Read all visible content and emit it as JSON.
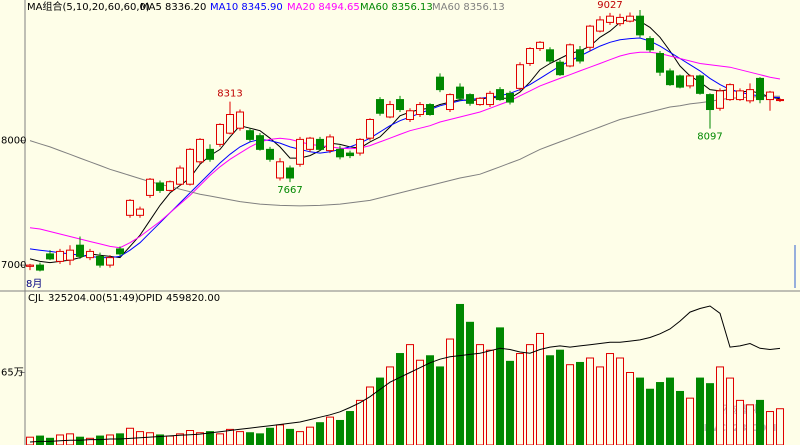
{
  "chart_data": {
    "type": "candlestick",
    "legend": [
      {
        "label": "MA组合(5,10,20,60,60,0)",
        "color": "#000000"
      },
      {
        "label": "MA5 8336.20",
        "color": "#000000"
      },
      {
        "label": "MA10 8345.90",
        "color": "#0000ff"
      },
      {
        "label": "MA20 8494.65",
        "color": "#ff00ff"
      },
      {
        "label": "MA60 8356.13",
        "color": "#008800"
      },
      {
        "label": "MA60 8356.13",
        "color": "#808080"
      }
    ],
    "x_label": "8月",
    "up_color": "#e00000",
    "down_color": "#008800",
    "ylim": [
      6800,
      9130
    ],
    "yticks": [
      7000,
      8000
    ],
    "ohlc": {
      "open": [
        6990,
        7000,
        7090,
        7030,
        7040,
        7160,
        7060,
        7070,
        7000,
        7130,
        7400,
        7400,
        7560,
        7660,
        7600,
        7650,
        7650,
        7830,
        7930,
        7970,
        8060,
        8100,
        8080,
        8040,
        7930,
        7700,
        7780,
        7810,
        7930,
        8010,
        7920,
        7930,
        7900,
        7900,
        8020,
        8330,
        8190,
        8330,
        8170,
        8210,
        8290,
        8510,
        8250,
        8430,
        8370,
        8290,
        8290,
        8410,
        8380,
        8420,
        8620,
        8740,
        8730,
        8630,
        8600,
        8730,
        8750,
        8880,
        8950,
        8940,
        8960,
        9000,
        8820,
        8700,
        8560,
        8520,
        8440,
        8520,
        8370,
        8260,
        8330,
        8330,
        8320,
        8500,
        8330,
        8330
      ],
      "high": [
        7010,
        7020,
        7120,
        7130,
        7160,
        7230,
        7130,
        7100,
        7080,
        7150,
        7530,
        7470,
        7700,
        7680,
        7680,
        7800,
        7940,
        8020,
        7970,
        8140,
        8313,
        8250,
        8100,
        8060,
        7950,
        7860,
        7800,
        8030,
        8030,
        8030,
        8050,
        7960,
        7920,
        8020,
        8180,
        8350,
        8320,
        8360,
        8260,
        8310,
        8300,
        8540,
        8380,
        8460,
        8380,
        8350,
        8400,
        8430,
        8400,
        8630,
        8750,
        8800,
        8750,
        8650,
        8780,
        8760,
        8930,
        9000,
        9027,
        9020,
        9030,
        9050,
        8840,
        8720,
        8580,
        8530,
        8530,
        8530,
        8380,
        8420,
        8460,
        8420,
        8460,
        8510,
        8400,
        8340
      ],
      "low": [
        6960,
        6950,
        7040,
        7010,
        7000,
        7050,
        7040,
        6980,
        6980,
        7070,
        7380,
        7380,
        7540,
        7580,
        7590,
        7640,
        7640,
        7810,
        7830,
        7950,
        8050,
        8080,
        7990,
        7920,
        7830,
        7680,
        7667,
        7790,
        7910,
        7920,
        7900,
        7850,
        7860,
        7880,
        8000,
        8200,
        8180,
        8230,
        8150,
        8190,
        8200,
        8390,
        8230,
        8320,
        8280,
        8280,
        8270,
        8320,
        8290,
        8400,
        8600,
        8720,
        8620,
        8520,
        8590,
        8620,
        8720,
        8870,
        8930,
        8920,
        8950,
        8830,
        8710,
        8520,
        8440,
        8420,
        8420,
        8370,
        8097,
        8240,
        8320,
        8320,
        8300,
        8300,
        8240,
        8310
      ],
      "close": [
        7000,
        6960,
        7050,
        7110,
        7120,
        7070,
        7110,
        7000,
        7060,
        7090,
        7520,
        7450,
        7690,
        7600,
        7670,
        7780,
        7930,
        8010,
        7850,
        8130,
        8210,
        8230,
        8010,
        7930,
        7850,
        7830,
        7700,
        8010,
        8020,
        7930,
        8030,
        7870,
        7880,
        8010,
        8170,
        8220,
        8290,
        8250,
        8240,
        8290,
        8210,
        8410,
        8370,
        8340,
        8300,
        8340,
        8380,
        8330,
        8310,
        8610,
        8740,
        8790,
        8640,
        8530,
        8770,
        8640,
        8920,
        8970,
        9000,
        8990,
        9000,
        8850,
        8730,
        8550,
        8450,
        8430,
        8520,
        8380,
        8250,
        8400,
        8450,
        8400,
        8410,
        8330,
        8390,
        8330
      ]
    },
    "ma_lines": [
      {
        "color": "#000000",
        "values": [
          7050,
          7030,
          7020,
          7030,
          7040,
          7060,
          7090,
          7080,
          7070,
          7060,
          7150,
          7240,
          7360,
          7480,
          7580,
          7640,
          7700,
          7810,
          7880,
          7930,
          8030,
          8120,
          8100,
          8080,
          8020,
          7950,
          7860,
          7860,
          7880,
          7920,
          7980,
          7970,
          7950,
          7940,
          7990,
          8030,
          8110,
          8200,
          8230,
          8250,
          8260,
          8290,
          8310,
          8330,
          8320,
          8330,
          8350,
          8340,
          8340,
          8390,
          8470,
          8570,
          8620,
          8660,
          8700,
          8720,
          8760,
          8830,
          8880,
          8950,
          8980,
          8960,
          8910,
          8830,
          8720,
          8600,
          8520,
          8470,
          8410,
          8400,
          8410,
          8390,
          8400,
          8380,
          8350,
          8336
        ]
      },
      {
        "color": "#0000ff",
        "values": [
          7130,
          7120,
          7110,
          7100,
          7090,
          7080,
          7070,
          7060,
          7060,
          7070,
          7120,
          7180,
          7260,
          7340,
          7420,
          7500,
          7580,
          7660,
          7740,
          7820,
          7890,
          7950,
          7990,
          8010,
          8000,
          7980,
          7950,
          7930,
          7910,
          7900,
          7910,
          7930,
          7950,
          7980,
          8020,
          8070,
          8120,
          8160,
          8190,
          8220,
          8250,
          8280,
          8300,
          8320,
          8330,
          8340,
          8350,
          8360,
          8380,
          8410,
          8450,
          8500,
          8550,
          8600,
          8640,
          8680,
          8720,
          8760,
          8790,
          8810,
          8820,
          8825,
          8800,
          8760,
          8710,
          8660,
          8610,
          8560,
          8500,
          8450,
          8410,
          8390,
          8370,
          8360,
          8350,
          8346
        ]
      },
      {
        "color": "#ff00ff",
        "values": [
          7300,
          7290,
          7270,
          7250,
          7230,
          7210,
          7190,
          7170,
          7150,
          7140,
          7180,
          7230,
          7290,
          7350,
          7420,
          7490,
          7560,
          7640,
          7720,
          7790,
          7850,
          7900,
          7950,
          7990,
          8010,
          8020,
          8010,
          7990,
          7970,
          7960,
          7950,
          7940,
          7935,
          7940,
          7960,
          7990,
          8020,
          8050,
          8080,
          8100,
          8120,
          8150,
          8170,
          8190,
          8210,
          8230,
          8260,
          8290,
          8320,
          8360,
          8400,
          8440,
          8470,
          8500,
          8530,
          8560,
          8590,
          8620,
          8650,
          8680,
          8700,
          8710,
          8710,
          8700,
          8680,
          8660,
          8640,
          8620,
          8610,
          8600,
          8590,
          8570,
          8550,
          8530,
          8510,
          8495
        ]
      },
      {
        "color": "#808080",
        "values": [
          8000,
          7975,
          7950,
          7920,
          7890,
          7860,
          7830,
          7800,
          7770,
          7745,
          7720,
          7695,
          7670,
          7650,
          7630,
          7610,
          7590,
          7570,
          7555,
          7540,
          7525,
          7510,
          7500,
          7490,
          7485,
          7480,
          7478,
          7476,
          7478,
          7480,
          7485,
          7490,
          7500,
          7510,
          7520,
          7540,
          7560,
          7580,
          7600,
          7620,
          7640,
          7660,
          7680,
          7700,
          7715,
          7730,
          7760,
          7790,
          7820,
          7850,
          7890,
          7930,
          7960,
          7990,
          8020,
          8050,
          8080,
          8110,
          8140,
          8170,
          8190,
          8210,
          8230,
          8250,
          8270,
          8280,
          8295,
          8305,
          8315,
          8330,
          8340,
          8345,
          8350,
          8355,
          8356,
          8356
        ]
      }
    ],
    "volume": {
      "header": [
        "CJL",
        "325204.00(51:49)",
        "OPID",
        "459820.00"
      ],
      "ylim": [
        0,
        1300000
      ],
      "yticks": [
        {
          "value": 650000,
          "label": "65万"
        }
      ],
      "values": [
        70000,
        80000,
        60000,
        90000,
        100000,
        70000,
        60000,
        80000,
        90000,
        100000,
        150000,
        120000,
        110000,
        90000,
        80000,
        100000,
        130000,
        110000,
        120000,
        100000,
        140000,
        120000,
        110000,
        100000,
        150000,
        180000,
        140000,
        120000,
        160000,
        200000,
        250000,
        220000,
        300000,
        400000,
        520000,
        600000,
        700000,
        820000,
        900000,
        760000,
        800000,
        700000,
        950000,
        1260000,
        1100000,
        900000,
        850000,
        1050000,
        750000,
        820000,
        900000,
        1000000,
        800000,
        850000,
        720000,
        740000,
        780000,
        700000,
        820000,
        780000,
        650000,
        600000,
        500000,
        560000,
        600000,
        480000,
        420000,
        600000,
        550000,
        700000,
        600000,
        400000,
        360000,
        400000,
        300000,
        325204
      ],
      "oi": {
        "color": "#000000",
        "y2lim": [
          300000,
          540000
        ],
        "values": [
          305000,
          306000,
          306000,
          307000,
          308000,
          308000,
          309000,
          309000,
          310000,
          310000,
          311000,
          312000,
          313000,
          314000,
          315000,
          316000,
          317000,
          318000,
          320000,
          322000,
          324000,
          326000,
          328000,
          330000,
          332000,
          334000,
          336000,
          338000,
          342000,
          346000,
          350000,
          355000,
          362000,
          370000,
          380000,
          392000,
          404000,
          412000,
          420000,
          428000,
          436000,
          442000,
          446000,
          448000,
          450000,
          452000,
          456000,
          460000,
          458000,
          454000,
          452000,
          458000,
          462000,
          464000,
          462000,
          464000,
          466000,
          468000,
          470000,
          470000,
          472000,
          474000,
          478000,
          484000,
          492000,
          505000,
          520000,
          526000,
          530000,
          518000,
          462000,
          464000,
          468000,
          460000,
          458000,
          459820
        ]
      }
    },
    "watermark": [
      "环球塑化",
      "PVC123.COM"
    ]
  }
}
